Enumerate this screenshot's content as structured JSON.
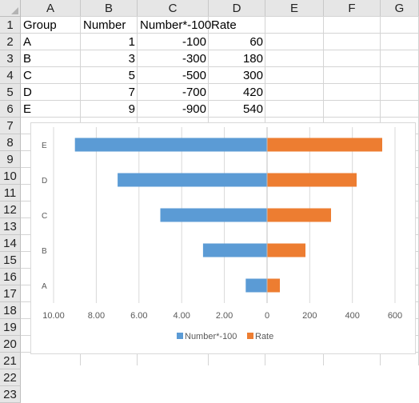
{
  "sheet": {
    "columns": [
      "A",
      "B",
      "C",
      "D",
      "E",
      "F",
      "G"
    ],
    "rows": [
      "1",
      "2",
      "3",
      "4",
      "5",
      "6",
      "7",
      "8",
      "9",
      "10",
      "11",
      "12",
      "13",
      "14",
      "15",
      "16",
      "17",
      "18",
      "19",
      "20",
      "21",
      "22",
      "23"
    ],
    "headers": [
      "Group",
      "Number",
      "Number*-100",
      "Rate"
    ],
    "data": [
      [
        "A",
        "1",
        "-100",
        "60"
      ],
      [
        "B",
        "3",
        "-300",
        "180"
      ],
      [
        "C",
        "5",
        "-500",
        "300"
      ],
      [
        "D",
        "7",
        "-700",
        "420"
      ],
      [
        "E",
        "9",
        "-900",
        "540"
      ]
    ]
  },
  "chart_data": {
    "type": "bar",
    "orientation": "horizontal",
    "categories": [
      "A",
      "B",
      "C",
      "D",
      "E"
    ],
    "series": [
      {
        "name": "Number*-100",
        "values": [
          -100,
          -300,
          -500,
          -700,
          -900
        ],
        "color": "#5b9bd5",
        "axis_ticks": [
          "10.00",
          "8.00",
          "6.00",
          "4.00",
          "2.00"
        ]
      },
      {
        "name": "Rate",
        "values": [
          60,
          180,
          300,
          420,
          540
        ],
        "color": "#ed7d31",
        "axis_ticks": [
          "0",
          "200",
          "400",
          "600"
        ]
      }
    ],
    "xlim": [
      -1000,
      600
    ],
    "grid": true,
    "legend_position": "bottom"
  }
}
